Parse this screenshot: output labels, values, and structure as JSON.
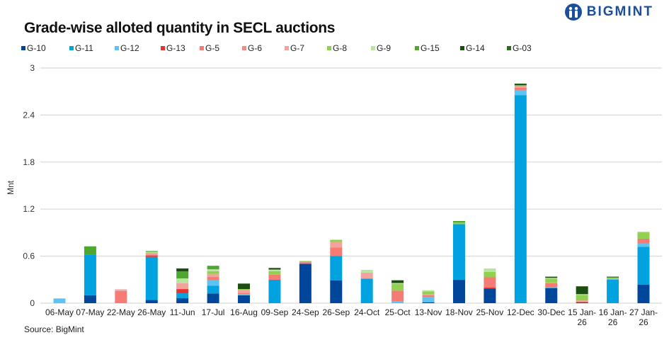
{
  "chart_data": {
    "type": "bar",
    "stacked": true,
    "title": "Grade-wise alloted quantity in SECL auctions",
    "ylabel": "Mnt",
    "xlabel": "",
    "ylim": [
      0,
      3
    ],
    "yticks": [
      "0",
      "0.6",
      "1.2",
      "1.8",
      "2.4",
      "3"
    ],
    "ytick_values": [
      0,
      0.6,
      1.2,
      1.8,
      2.4,
      3
    ],
    "grid": true,
    "legend_position": "top",
    "categories": [
      "06-May",
      "07-May",
      "22-May",
      "26-May",
      "11-Jun",
      "17-Jul",
      "16-Aug",
      "09-Sep",
      "24-Sep",
      "26-Sep",
      "24-Oct",
      "25-Oct",
      "13-Nov",
      "18-Nov",
      "25-Nov",
      "12-Dec",
      "30-Dec",
      "15 Jan-26",
      "16 Jan-26",
      "27 Jan-26"
    ],
    "series": [
      {
        "name": "G-10",
        "color": "#00479b",
        "values": [
          0,
          0.1,
          0,
          0.04,
          0.063,
          0.124,
          0.1,
          0,
          0.503,
          0.292,
          0,
          0,
          0.012,
          0.298,
          0.187,
          0,
          0.193,
          0.01,
          0,
          0.235
        ]
      },
      {
        "name": "G-11",
        "color": "#00a3e0",
        "values": [
          0,
          0.52,
          0,
          0.55,
          0.063,
          0.1,
          0,
          0.298,
          0,
          0.31,
          0.313,
          0,
          0,
          0.71,
          0,
          2.655,
          0,
          0,
          0.298,
          0.485
        ]
      },
      {
        "name": "G-12",
        "color": "#5bc4f1",
        "values": [
          0.06,
          0,
          0,
          0,
          0,
          0.07,
          0.01,
          0,
          0,
          0,
          0,
          0.024,
          0.066,
          0,
          0,
          0.065,
          0.01,
          0,
          0.01,
          0.04
        ]
      },
      {
        "name": "G-13",
        "color": "#e8322f",
        "values": [
          0,
          0,
          0,
          0.015,
          0.054,
          0,
          0,
          0,
          0,
          0,
          0,
          0,
          0,
          0,
          0.013,
          0,
          0,
          0,
          0,
          0
        ]
      },
      {
        "name": "G-5",
        "color": "#f47c74",
        "values": [
          0,
          0,
          0.156,
          0.015,
          0,
          0.04,
          0.02,
          0.066,
          0.02,
          0.11,
          0,
          0.136,
          0.022,
          0,
          0.13,
          0.03,
          0.05,
          0.015,
          0,
          0.063
        ]
      },
      {
        "name": "G-6",
        "color": "#f78a80",
        "values": [
          0,
          0,
          0,
          0,
          0,
          0,
          0,
          0,
          0,
          0,
          0,
          0,
          0,
          0,
          0,
          0,
          0,
          0,
          0,
          0
        ]
      },
      {
        "name": "G-7",
        "color": "#f2a39d",
        "values": [
          0,
          0,
          0.02,
          0.015,
          0.073,
          0.04,
          0.04,
          0,
          0,
          0.07,
          0.075,
          0,
          0.017,
          0,
          0,
          0.02,
          0.01,
          0.01,
          0,
          0
        ]
      },
      {
        "name": "G-8",
        "color": "#92d050",
        "values": [
          0,
          0,
          0,
          0.01,
          0,
          0.034,
          0.01,
          0.045,
          0.015,
          0.027,
          0,
          0.087,
          0.033,
          0.02,
          0.07,
          0.01,
          0.05,
          0.07,
          0.02,
          0.08
        ]
      },
      {
        "name": "G-9",
        "color": "#b8e6a0",
        "values": [
          0,
          0,
          0,
          0.01,
          0.063,
          0.024,
          0,
          0.02,
          0,
          0,
          0.037,
          0.01,
          0.015,
          0,
          0.043,
          0,
          0.01,
          0.01,
          0,
          0.01
        ]
      },
      {
        "name": "G-15",
        "color": "#4ea72e",
        "values": [
          0,
          0.105,
          0,
          0.01,
          0.09,
          0.045,
          0,
          0,
          0,
          0,
          0,
          0,
          0,
          0.02,
          0,
          0,
          0,
          0,
          0,
          0
        ]
      },
      {
        "name": "G-14",
        "color": "#1e4d12",
        "values": [
          0,
          0,
          0,
          0,
          0.037,
          0,
          0.07,
          0.02,
          0,
          0,
          0,
          0.035,
          0,
          0,
          0,
          0.02,
          0.015,
          0.1,
          0.01,
          0
        ]
      },
      {
        "name": "G-03",
        "color": "#2e6b1e",
        "values": [
          0,
          0,
          0,
          0,
          0,
          0,
          0,
          0,
          0,
          0,
          0,
          0,
          0,
          0,
          0,
          0,
          0,
          0,
          0,
          0
        ]
      }
    ]
  },
  "logo": {
    "text": "BIGMINT",
    "color": "#1b4f9c"
  },
  "source": "Source: BigMint"
}
